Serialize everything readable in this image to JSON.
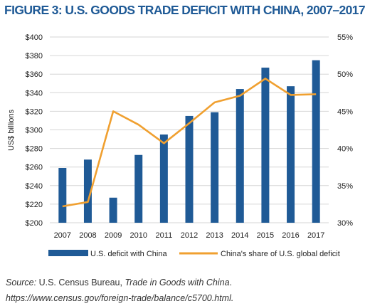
{
  "figure_title": "FIGURE 3: U.S. GOODS TRADE DEFICIT WITH CHINA, 2007–2017",
  "colors": {
    "title": "#1f5a96",
    "bar": "#1f5a96",
    "line": "#f0a030",
    "grid": "#d6d6d6",
    "axis_text": "#222222"
  },
  "chart_data": {
    "type": "bar",
    "categories": [
      "2007",
      "2008",
      "2009",
      "2010",
      "2011",
      "2012",
      "2013",
      "2014",
      "2015",
      "2016",
      "2017"
    ],
    "ylabel": "US$ billions",
    "ylim": [
      200,
      400
    ],
    "yticks": [
      "$200",
      "$220",
      "$240",
      "$260",
      "$280",
      "$300",
      "$320",
      "$340",
      "$360",
      "$380",
      "$400"
    ],
    "y2lim": [
      30,
      55
    ],
    "y2ticks": [
      "30%",
      "35%",
      "40%",
      "45%",
      "50%",
      "55%"
    ],
    "grid": true,
    "legend_position": "bottom",
    "series": [
      {
        "name": "U.S. deficit with China",
        "type": "bar",
        "axis": "left",
        "values": [
          259,
          268,
          227,
          273,
          295,
          315,
          319,
          344,
          367,
          347,
          375
        ]
      },
      {
        "name": "China's share of U.S. global deficit",
        "type": "line",
        "axis": "right",
        "values": [
          32.2,
          32.8,
          45.0,
          43.2,
          40.7,
          43.4,
          46.2,
          47.1,
          49.4,
          47.2,
          47.3
        ]
      }
    ]
  },
  "source": {
    "prefix": "Source:",
    "text1": " U.S. Census Bureau, ",
    "title": "Trade in Goods with China",
    "text2": ".",
    "url": "https://www.census.gov/foreign-trade/balance/c5700.html."
  }
}
